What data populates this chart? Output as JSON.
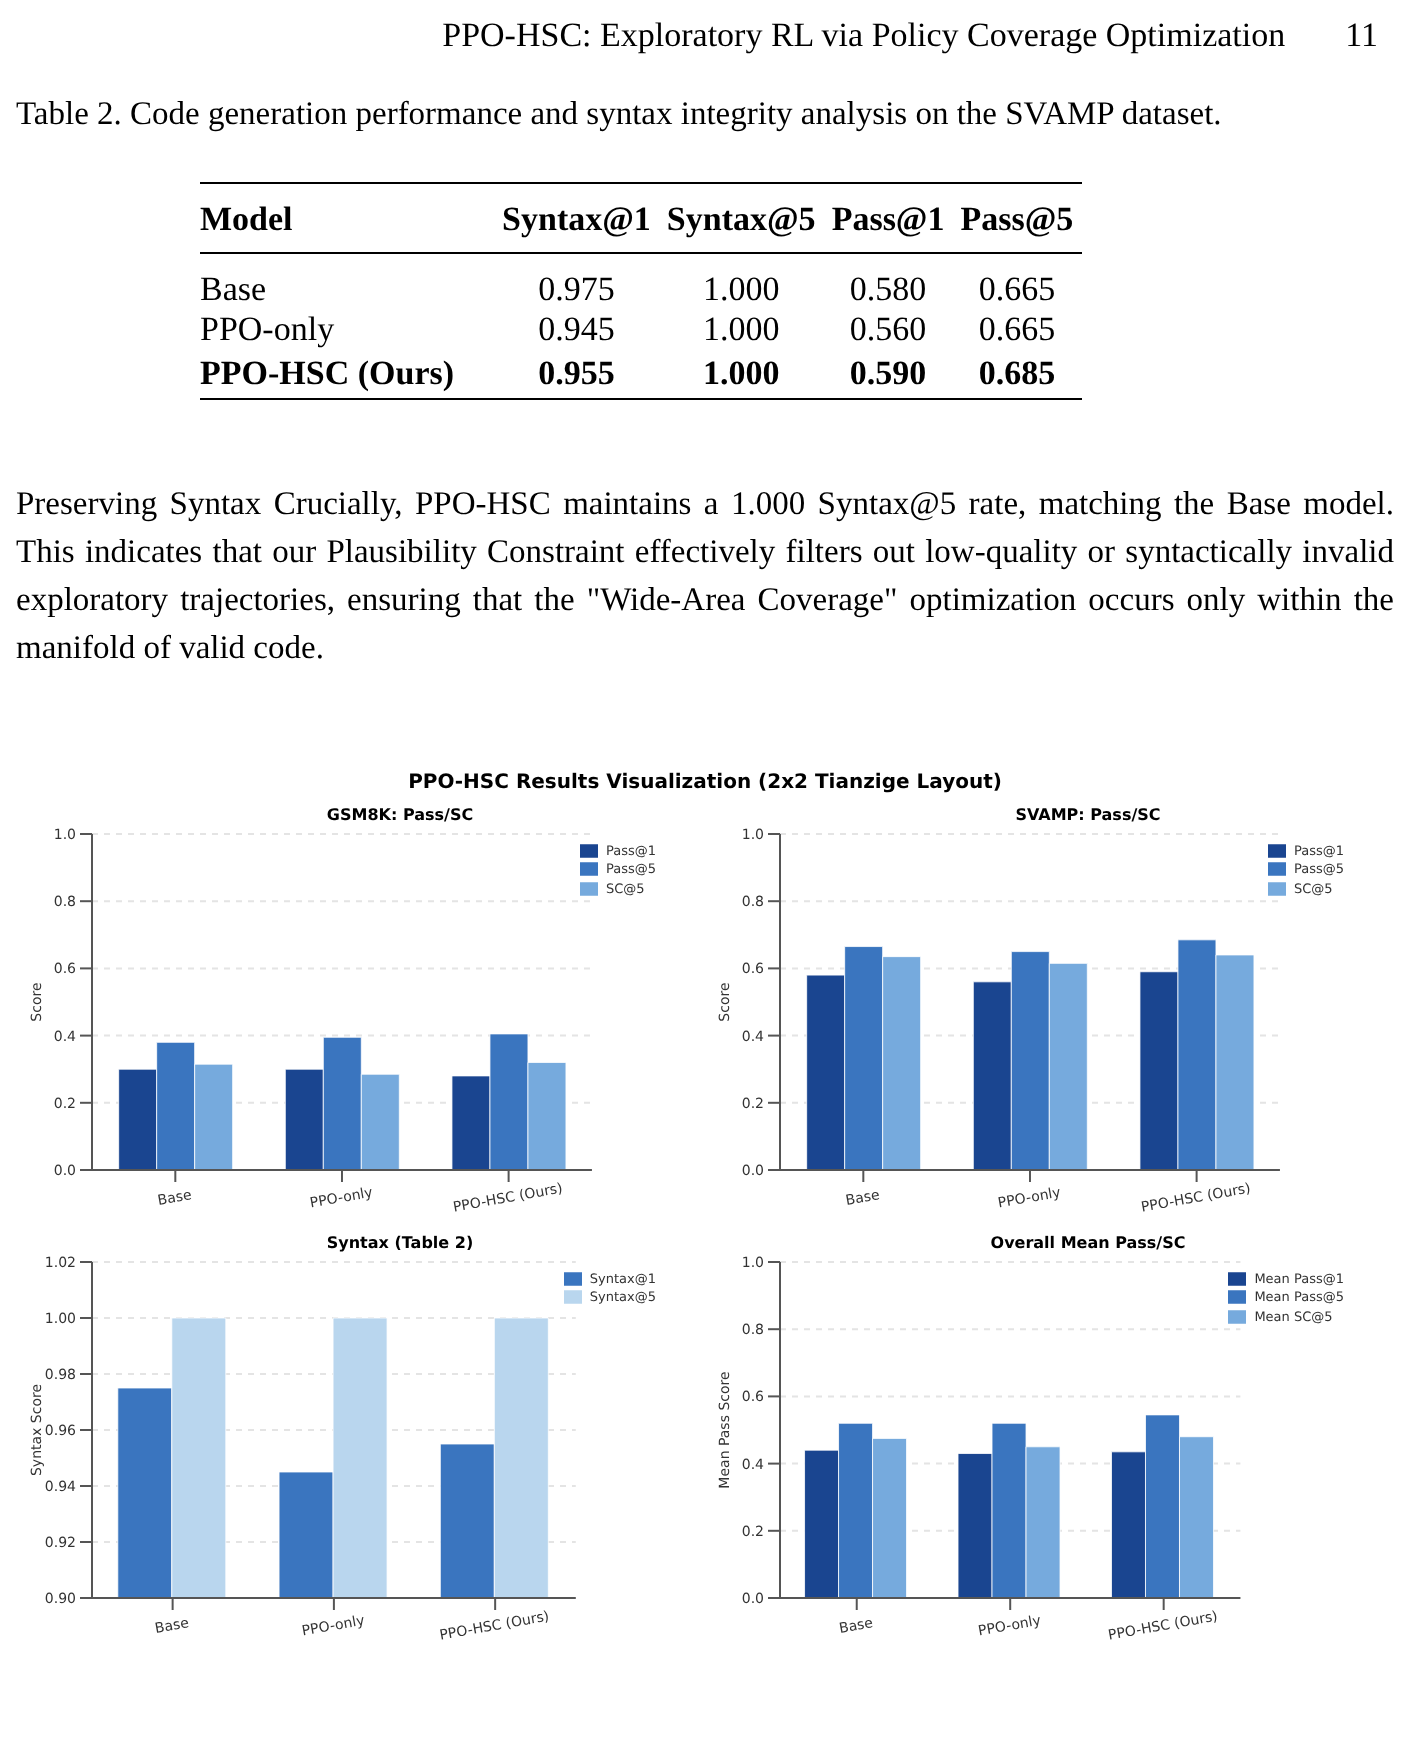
{
  "chart_data": [
    {
      "type": "other",
      "annotations": [
        "PPO-HSC: Exploratory RL via Policy Coverage Optimization",
        "11",
        "Table 2. Code generation performance and syntax integrity analysis on the SVAMP dataset.",
        "Preserving Syntax Crucially, PPO-HSC maintains a 1.000 Syntax@5 rate, matching the Base model. This indicates that our Plausibility Constraint effectively filters out low-quality or syntactically invalid exploratory trajectories, ensuring that the \"Wide-Area Coverage\" optimization occurs only within the manifold of valid code.",
        "PPO-HSC Results Visualization (2x2 Tianzige Layout)"
      ],
      "ylabel": "Model",
      "categories": [
        "Syntax@1",
        "Syntax@5",
        "Pass@1",
        "Pass@5"
      ],
      "y_categories": [
        "Base",
        "PPO-only",
        "PPO-HSC (Ours)"
      ],
      "cell_labels": [
        [
          "0.975",
          "1.000",
          "0.580",
          "0.665"
        ],
        [
          "0.945",
          "1.000",
          "0.560",
          "0.665"
        ],
        [
          "0.955",
          "1.000",
          "0.590",
          "0.685"
        ]
      ]
    },
    {
      "type": "bar",
      "title": "GSM8K: Pass/SC",
      "ylabel": "Score",
      "categories": [
        "Base",
        "PPO-only",
        "PPO-HSC (Ours)"
      ],
      "series": [
        {
          "name": "Pass@1",
          "color": "#1a4590",
          "values": [
            0.3,
            0.3,
            0.28
          ]
        },
        {
          "name": "Pass@5",
          "color": "#3a75bf",
          "values": [
            0.38,
            0.395,
            0.405
          ]
        },
        {
          "name": "SC@5",
          "color": "#76aadd",
          "values": [
            0.315,
            0.285,
            0.32
          ]
        }
      ],
      "ylim": [
        0,
        1
      ],
      "yticks": [
        {
          "value": 0,
          "label": "0.0"
        },
        {
          "value": 0.2,
          "label": "0.2"
        },
        {
          "value": 0.4,
          "label": "0.4"
        },
        {
          "value": 0.6,
          "label": "0.6"
        },
        {
          "value": 0.8,
          "label": "0.8"
        },
        {
          "value": 1,
          "label": "1.0"
        }
      ],
      "grid": "y",
      "legend": "top right"
    },
    {
      "type": "bar",
      "title": "SVAMP: Pass/SC",
      "ylabel": "Score",
      "categories": [
        "Base",
        "PPO-only",
        "PPO-HSC (Ours)"
      ],
      "series": [
        {
          "name": "Pass@1",
          "color": "#1a4590",
          "values": [
            0.58,
            0.56,
            0.59
          ]
        },
        {
          "name": "Pass@5",
          "color": "#3a75bf",
          "values": [
            0.665,
            0.65,
            0.685
          ]
        },
        {
          "name": "SC@5",
          "color": "#76aadd",
          "values": [
            0.635,
            0.615,
            0.64
          ]
        }
      ],
      "ylim": [
        0,
        1
      ],
      "yticks": [
        {
          "value": 0,
          "label": "0.0"
        },
        {
          "value": 0.2,
          "label": "0.2"
        },
        {
          "value": 0.4,
          "label": "0.4"
        },
        {
          "value": 0.6,
          "label": "0.6"
        },
        {
          "value": 0.8,
          "label": "0.8"
        },
        {
          "value": 1,
          "label": "1.0"
        }
      ],
      "grid": "y",
      "legend": "top right"
    },
    {
      "type": "bar",
      "title": "Syntax (Table 2)",
      "ylabel": "Syntax Score",
      "categories": [
        "Base",
        "PPO-only",
        "PPO-HSC (Ours)"
      ],
      "series": [
        {
          "name": "Syntax@1",
          "color": "#3a75bf",
          "values": [
            0.975,
            0.945,
            0.955
          ]
        },
        {
          "name": "Syntax@5",
          "color": "#b9d6ee",
          "values": [
            1.0,
            1.0,
            1.0
          ]
        }
      ],
      "ylim": [
        0.9,
        1.02
      ],
      "yticks": [
        {
          "value": 0.9,
          "label": "0.90"
        },
        {
          "value": 0.92,
          "label": "0.92"
        },
        {
          "value": 0.94,
          "label": "0.94"
        },
        {
          "value": 0.96,
          "label": "0.96"
        },
        {
          "value": 0.98,
          "label": "0.98"
        },
        {
          "value": 1.0,
          "label": "1.00"
        },
        {
          "value": 1.02,
          "label": "1.02"
        }
      ],
      "grid": "y",
      "legend": "top right"
    },
    {
      "type": "bar",
      "title": "Overall Mean Pass/SC",
      "ylabel": "Mean Pass Score",
      "categories": [
        "Base",
        "PPO-only",
        "PPO-HSC (Ours)"
      ],
      "series": [
        {
          "name": "Mean Pass@1",
          "color": "#1a4590",
          "values": [
            0.44,
            0.43,
            0.435
          ]
        },
        {
          "name": "Mean Pass@5",
          "color": "#3a75bf",
          "values": [
            0.52,
            0.52,
            0.545
          ]
        },
        {
          "name": "Mean SC@5",
          "color": "#76aadd",
          "values": [
            0.475,
            0.45,
            0.48
          ]
        }
      ],
      "ylim": [
        0,
        1
      ],
      "yticks": [
        {
          "value": 0,
          "label": "0.0"
        },
        {
          "value": 0.2,
          "label": "0.2"
        },
        {
          "value": 0.4,
          "label": "0.4"
        },
        {
          "value": 0.6,
          "label": "0.6"
        },
        {
          "value": 0.8,
          "label": "0.8"
        },
        {
          "value": 1,
          "label": "1.0"
        }
      ],
      "grid": "y",
      "legend": "top right"
    }
  ]
}
